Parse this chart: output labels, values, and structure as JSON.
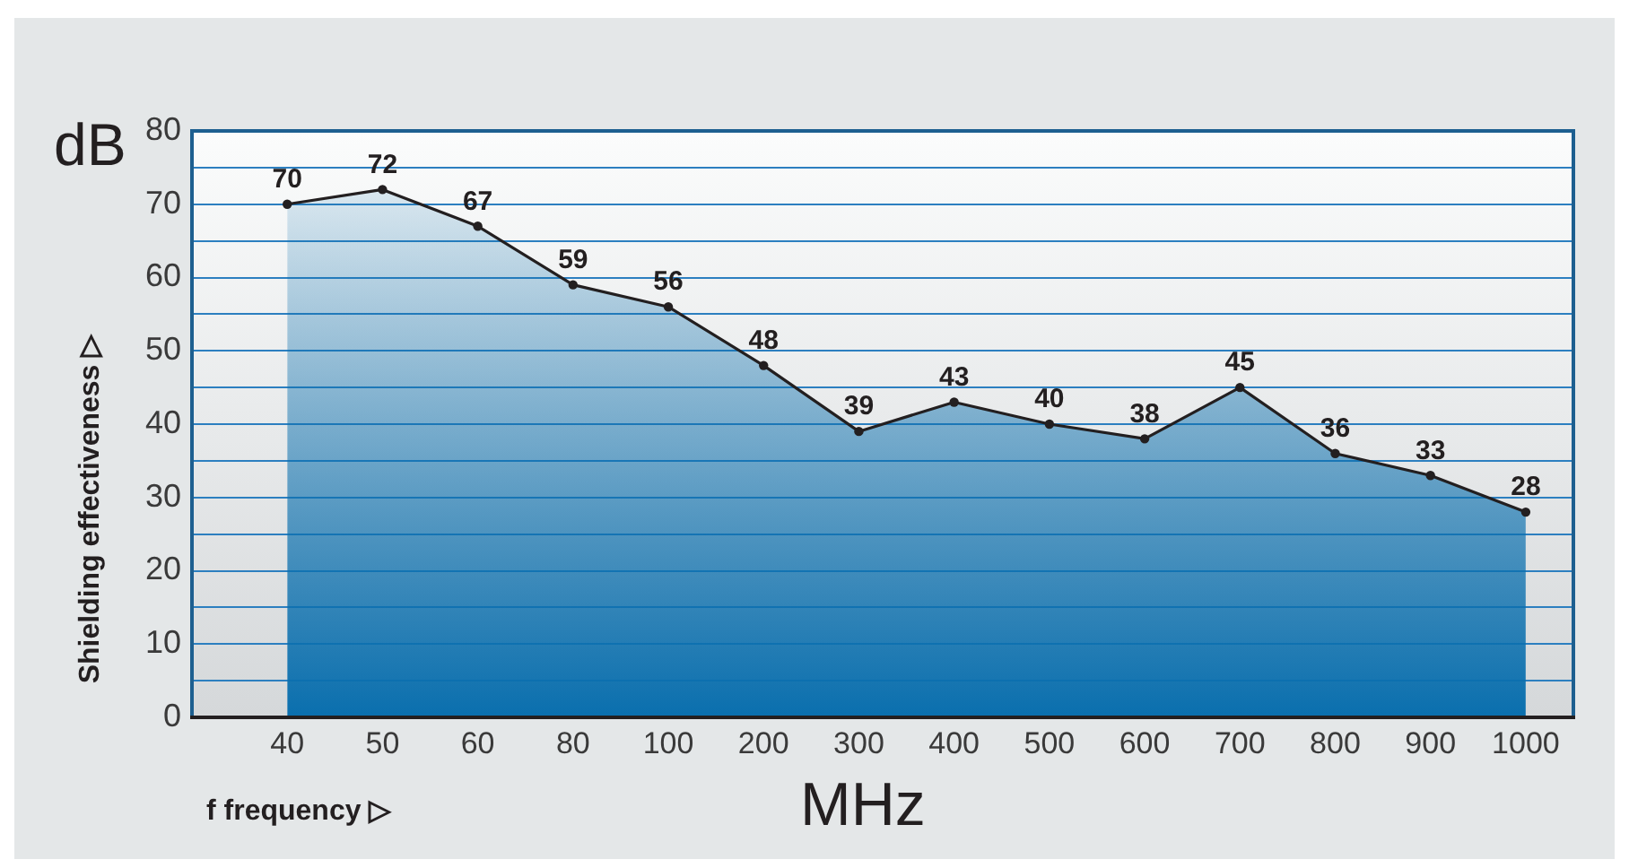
{
  "chart_data": {
    "type": "area",
    "ylabel": "Shielding effectiveness ▷",
    "xlabel": "f frequency ▷",
    "annotations": [
      "dB",
      "MHz"
    ],
    "categories": [
      null,
      "40",
      "50",
      "60",
      "80",
      "100",
      "200",
      "300",
      "400",
      "500",
      "600",
      "700",
      "800",
      "900",
      "1000"
    ],
    "series": [
      {
        "color": "#0a6fae",
        "values": [
          null,
          70,
          72,
          67,
          59,
          56,
          48,
          39,
          43,
          40,
          38,
          45,
          36,
          33,
          28
        ]
      }
    ],
    "ylim": [
      0,
      80
    ],
    "yticks": [
      0,
      {
        "value": 5,
        "label": null
      },
      10,
      {
        "value": 15,
        "label": null
      },
      20,
      {
        "value": 25,
        "label": null
      },
      30,
      {
        "value": 35,
        "label": null
      },
      40,
      {
        "value": 45,
        "label": null
      },
      50,
      {
        "value": 55,
        "label": null
      },
      60,
      {
        "value": 65,
        "label": null
      },
      70,
      {
        "value": 75,
        "label": null
      },
      80
    ],
    "grid": "y",
    "legend": false,
    "marker": "circle",
    "line_style": "solid",
    "data_labels": true
  }
}
